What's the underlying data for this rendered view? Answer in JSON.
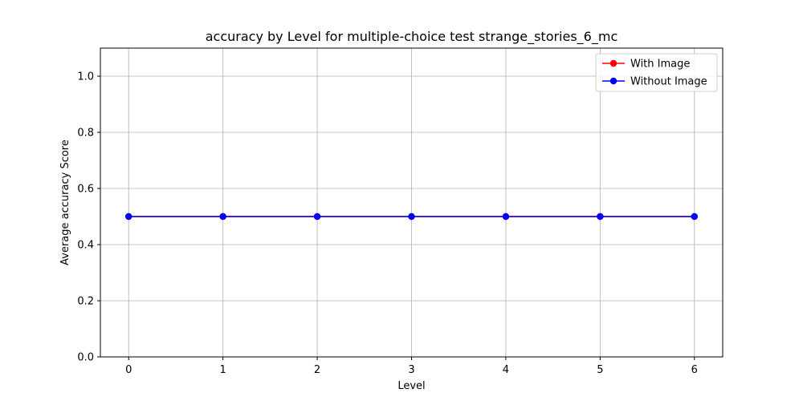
{
  "chart_data": {
    "type": "line",
    "title": "accuracy by Level for multiple-choice test strange_stories_6_mc",
    "xlabel": "Level",
    "ylabel": "Average accuracy Score",
    "x": [
      0,
      1,
      2,
      3,
      4,
      5,
      6
    ],
    "xlim": [
      -0.3,
      6.3
    ],
    "ylim": [
      0.0,
      1.1
    ],
    "xticks": [
      "0",
      "1",
      "2",
      "3",
      "4",
      "5",
      "6"
    ],
    "yticks": [
      "0.0",
      "0.2",
      "0.4",
      "0.6",
      "0.8",
      "1.0"
    ],
    "grid": true,
    "legend_position": "top-right",
    "series": [
      {
        "name": "With Image",
        "color": "#ff0000",
        "values": [
          0.5,
          0.5,
          0.5,
          0.5,
          0.5,
          0.5,
          0.5
        ]
      },
      {
        "name": "Without Image",
        "color": "#0000ff",
        "values": [
          0.5,
          0.5,
          0.5,
          0.5,
          0.5,
          0.5,
          0.5
        ]
      }
    ]
  }
}
